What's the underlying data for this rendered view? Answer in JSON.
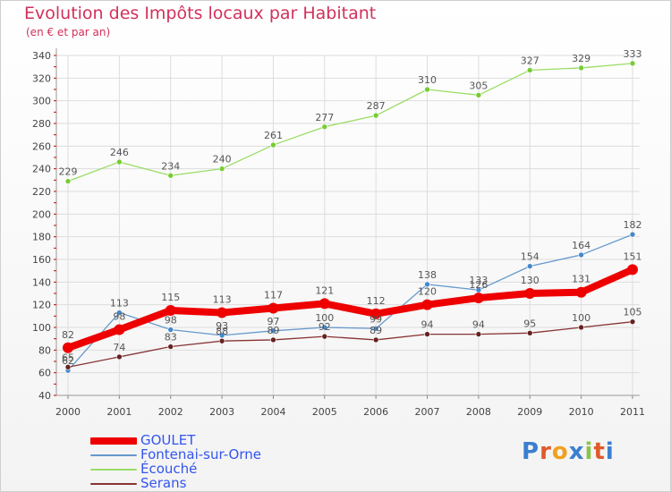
{
  "title": "Evolution des Impôts locaux par Habitant",
  "subtitle": "(en € et par an)",
  "logo": {
    "letters": [
      "P",
      "r",
      "o",
      "x",
      "i",
      "t",
      "i"
    ],
    "colors": [
      "#3a7fd0",
      "#e05a2a",
      "#f0a020",
      "#3a7fd0",
      "#8bc34a",
      "#e05a2a",
      "#3a7fd0"
    ]
  },
  "chart_data": {
    "type": "line",
    "categories": [
      "2000",
      "2001",
      "2002",
      "2003",
      "2004",
      "2005",
      "2006",
      "2007",
      "2008",
      "2009",
      "2010",
      "2011"
    ],
    "ylim": [
      40,
      340
    ],
    "yticks": [
      40,
      60,
      80,
      100,
      120,
      140,
      160,
      180,
      200,
      220,
      240,
      260,
      280,
      300,
      320,
      340
    ],
    "grid": true,
    "series": [
      {
        "name": "Écouché",
        "color": "#99dd66",
        "point_color": "#77cc33",
        "values": [
          229,
          246,
          234,
          240,
          261,
          277,
          287,
          310,
          305,
          327,
          329,
          333
        ]
      },
      {
        "name": "Fontenai-sur-Orne",
        "color": "#6699cc",
        "point_color": "#4488cc",
        "values": [
          62,
          113,
          98,
          93,
          97,
          100,
          99,
          138,
          133,
          154,
          164,
          182
        ]
      },
      {
        "name": "Serans",
        "color": "#883333",
        "point_color": "#662222",
        "values": [
          65,
          74,
          83,
          88,
          89,
          92,
          89,
          94,
          94,
          95,
          100,
          105
        ]
      },
      {
        "name": "GOULET",
        "color": "#ee0000",
        "point_color": "#ee0000",
        "values": [
          82,
          98,
          115,
          113,
          117,
          121,
          112,
          120,
          126,
          130,
          131,
          151
        ]
      }
    ],
    "data_labels": [
      {
        "series": "Écouché",
        "labels": [
          "229",
          "246",
          "234",
          "240",
          "261",
          "277",
          "287",
          "310",
          "305",
          "327",
          "329",
          "333"
        ]
      },
      {
        "series": "Fontenai-sur-Orne",
        "labels": [
          "62",
          "113",
          "98",
          "93",
          "97",
          "100",
          "99",
          "138",
          "133",
          "154",
          "164",
          "182"
        ]
      },
      {
        "series": "Serans",
        "labels": [
          "65",
          "74",
          "83",
          "88",
          "89",
          "92",
          "89",
          "94",
          "94",
          "95",
          "100",
          "105"
        ]
      },
      {
        "series": "GOULET",
        "labels": [
          "82",
          "98",
          "115",
          "113",
          "117",
          "121",
          "112",
          "120",
          "126",
          "130",
          "131",
          "151"
        ]
      }
    ],
    "legend": [
      {
        "name": "GOULET",
        "color": "#ee0000"
      },
      {
        "name": "Fontenai-sur-Orne",
        "color": "#6699cc"
      },
      {
        "name": "Écouché",
        "color": "#99dd66"
      },
      {
        "name": "Serans",
        "color": "#883333"
      }
    ],
    "legend_position": "bottom-left"
  }
}
